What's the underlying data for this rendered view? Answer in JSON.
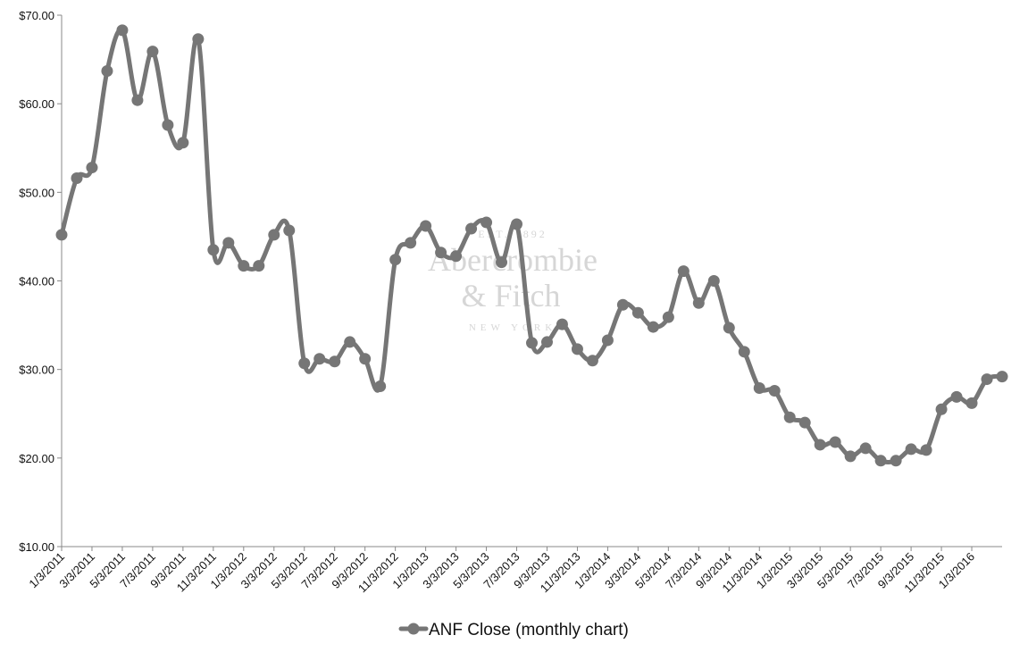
{
  "chart_data": {
    "type": "line",
    "title": "",
    "xlabel": "",
    "ylabel": "",
    "ylim": [
      10,
      70
    ],
    "y_ticks": [
      "$10.00",
      "$20.00",
      "$30.00",
      "$40.00",
      "$50.00",
      "$60.00",
      "$70.00"
    ],
    "x_tick_labels": [
      "1/3/2011",
      "3/3/2011",
      "5/3/2011",
      "7/3/2011",
      "9/3/2011",
      "11/3/2011",
      "1/3/2012",
      "3/3/2012",
      "5/3/2012",
      "7/3/2012",
      "9/3/2012",
      "11/3/2012",
      "1/3/2013",
      "3/3/2013",
      "5/3/2013",
      "7/3/2013",
      "9/3/2013",
      "11/3/2013",
      "1/3/2014",
      "3/3/2014",
      "5/3/2014",
      "7/3/2014",
      "9/3/2014",
      "11/3/2014",
      "1/3/2015",
      "3/3/2015",
      "5/3/2015",
      "7/3/2015",
      "9/3/2015",
      "11/3/2015",
      "1/3/2016"
    ],
    "grid": false,
    "legend_position": "bottom",
    "series": [
      {
        "name": "ANF Close (monthly chart)",
        "color": "#767676",
        "values": [
          45.2,
          51.6,
          52.8,
          63.7,
          68.3,
          60.4,
          65.9,
          57.6,
          55.6,
          67.3,
          43.5,
          44.3,
          41.7,
          41.7,
          45.2,
          45.7,
          30.7,
          31.2,
          30.9,
          33.1,
          31.2,
          28.1,
          42.4,
          44.3,
          46.2,
          43.2,
          42.8,
          45.9,
          46.6,
          42.1,
          46.4,
          33.0,
          33.1,
          35.1,
          32.3,
          31.0,
          33.3,
          37.3,
          36.4,
          34.8,
          35.9,
          41.1,
          37.5,
          40.0,
          34.7,
          32.0,
          27.9,
          27.6,
          24.6,
          24.0,
          21.5,
          21.8,
          20.2,
          21.1,
          19.7,
          19.7,
          21.0,
          20.9,
          25.5,
          26.9,
          26.2,
          28.9,
          29.2
        ]
      }
    ]
  },
  "watermark": {
    "est": "EST. 1892",
    "line1": "Abercrombie",
    "line2": "& Fitch",
    "line3": "NEW YORK"
  }
}
